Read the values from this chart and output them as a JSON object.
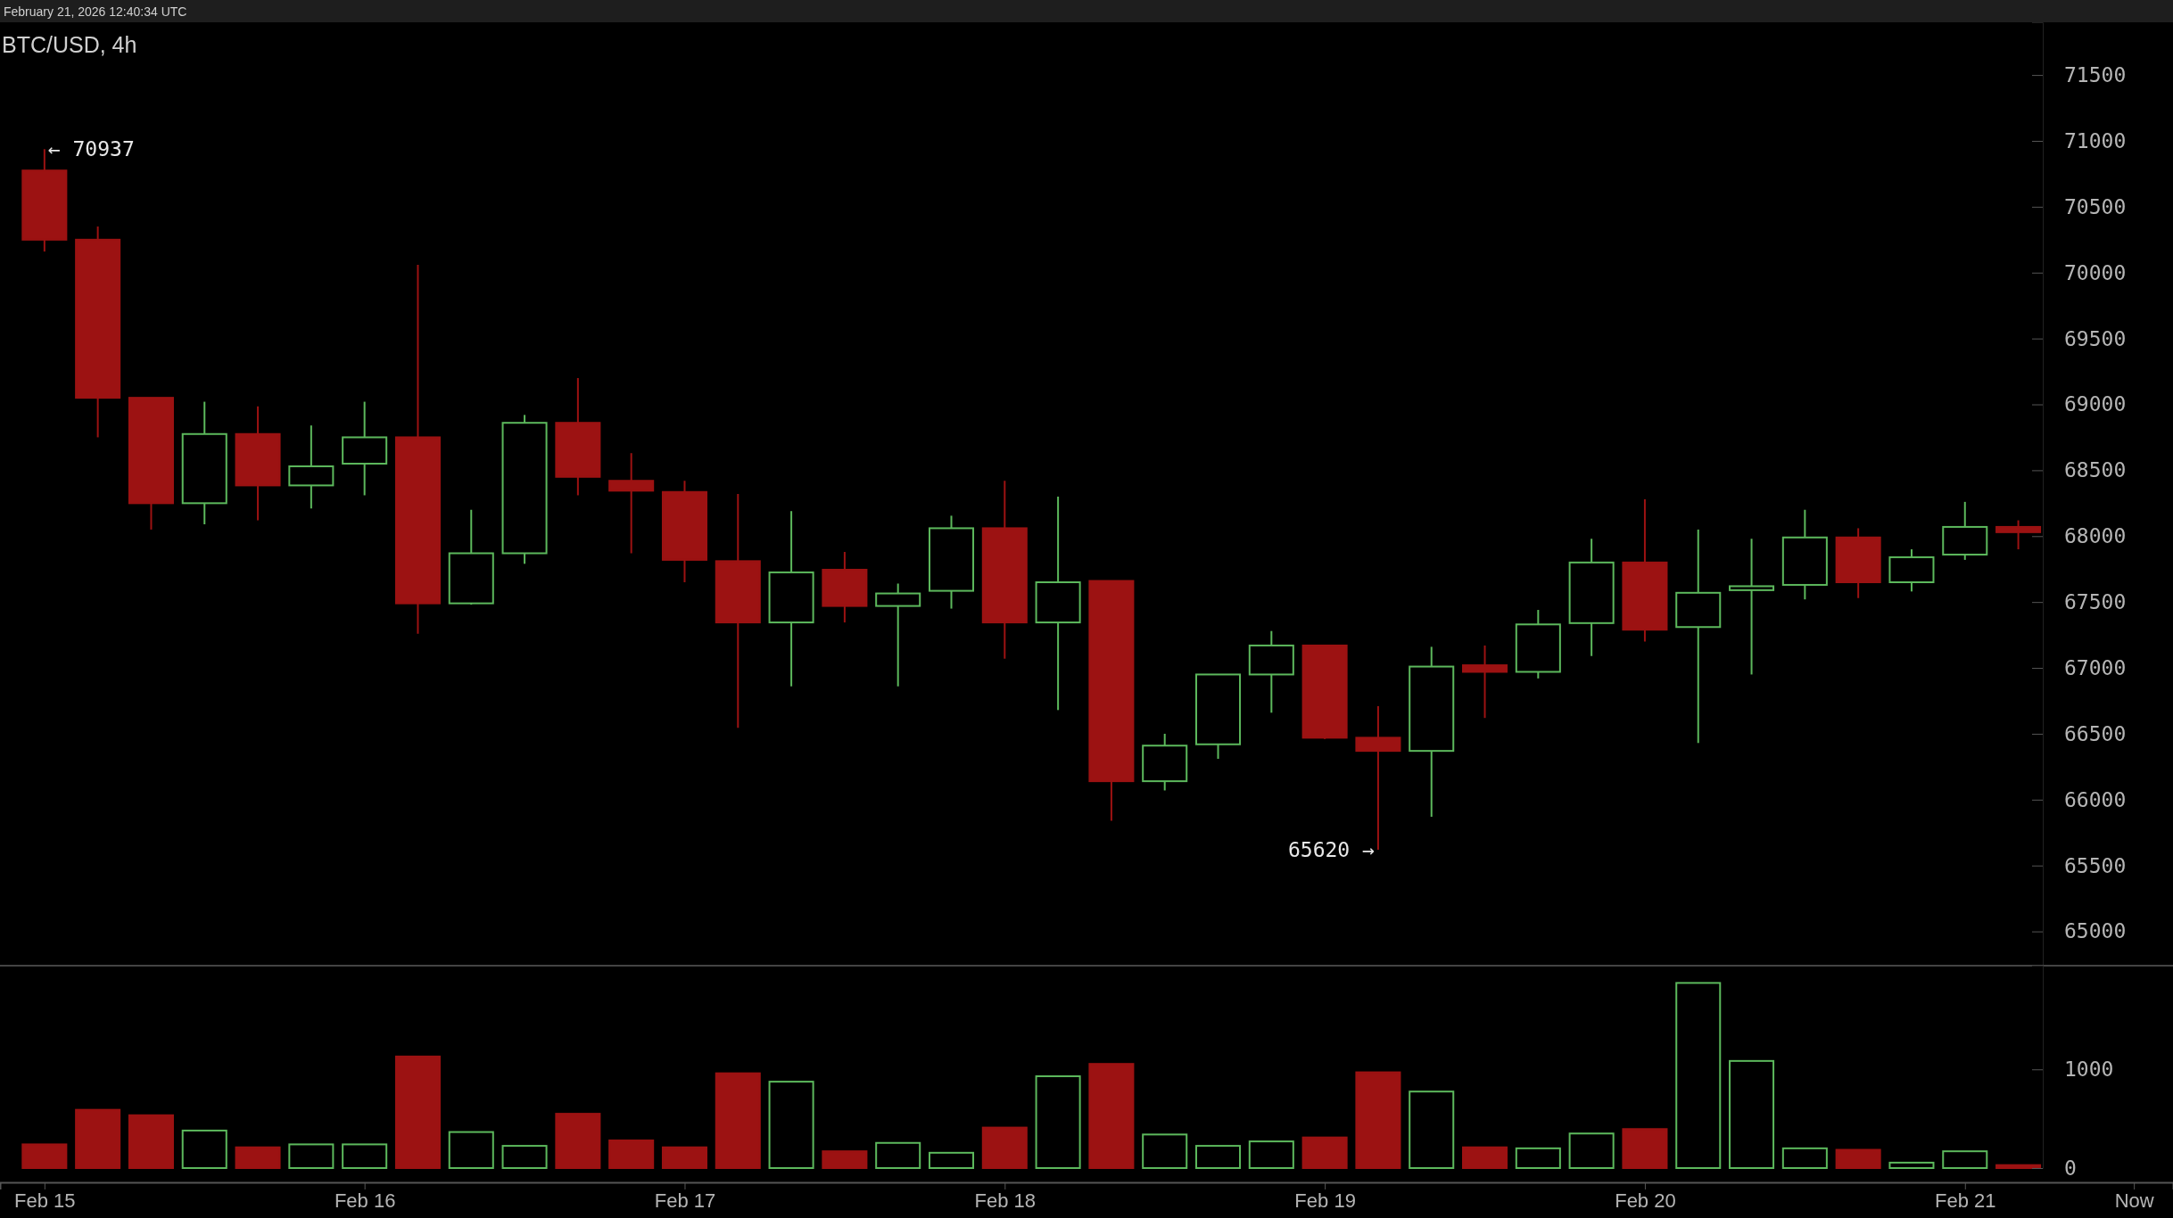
{
  "chart_data": [
    {
      "type": "candlestick",
      "title": "BTC/USD, 4h",
      "annotations": [
        "February 21, 2026 12:40:34 UTC",
        {
          "text": "← 70937",
          "x": "2026-02-15T00:00",
          "y": 70937
        },
        {
          "text": "65620 →",
          "x": "2026-02-19T04:00",
          "y": 65620
        }
      ],
      "x": [
        "2026-02-15T00:00",
        "2026-02-15T04:00",
        "2026-02-15T08:00",
        "2026-02-15T12:00",
        "2026-02-15T16:00",
        "2026-02-15T20:00",
        "2026-02-16T00:00",
        "2026-02-16T04:00",
        "2026-02-16T08:00",
        "2026-02-16T12:00",
        "2026-02-16T16:00",
        "2026-02-16T20:00",
        "2026-02-17T00:00",
        "2026-02-17T04:00",
        "2026-02-17T08:00",
        "2026-02-17T12:00",
        "2026-02-17T16:00",
        "2026-02-17T20:00",
        "2026-02-18T00:00",
        "2026-02-18T04:00",
        "2026-02-18T08:00",
        "2026-02-18T12:00",
        "2026-02-18T16:00",
        "2026-02-18T20:00",
        "2026-02-19T00:00",
        "2026-02-19T04:00",
        "2026-02-19T08:00",
        "2026-02-19T12:00",
        "2026-02-19T16:00",
        "2026-02-19T20:00",
        "2026-02-20T00:00",
        "2026-02-20T04:00",
        "2026-02-20T08:00",
        "2026-02-20T12:00",
        "2026-02-20T16:00",
        "2026-02-20T20:00",
        "2026-02-21T00:00",
        "2026-02-21T04:00"
      ],
      "ohlc": [
        [
          70775,
          70937,
          70160,
          70250
        ],
        [
          70250,
          70350,
          68750,
          69050
        ],
        [
          69050,
          69050,
          68050,
          68250
        ],
        [
          68250,
          69020,
          68090,
          68775
        ],
        [
          68775,
          68985,
          68120,
          68385
        ],
        [
          68385,
          68840,
          68210,
          68530
        ],
        [
          68550,
          69020,
          68310,
          68750
        ],
        [
          68750,
          70060,
          67260,
          67490
        ],
        [
          67490,
          68200,
          67480,
          67870
        ],
        [
          67870,
          68920,
          67790,
          68860
        ],
        [
          68860,
          69200,
          68310,
          68450
        ],
        [
          68420,
          68630,
          67870,
          68345
        ],
        [
          68335,
          68420,
          67650,
          67820
        ],
        [
          67810,
          68320,
          66545,
          67345
        ],
        [
          67345,
          68190,
          66860,
          67725
        ],
        [
          67745,
          67880,
          67345,
          67470
        ],
        [
          67470,
          67640,
          66860,
          67565
        ],
        [
          67585,
          68155,
          67450,
          68060
        ],
        [
          68060,
          68420,
          67070,
          67345
        ],
        [
          67345,
          68300,
          66680,
          67650
        ],
        [
          67660,
          67660,
          65840,
          66140
        ],
        [
          66140,
          66500,
          66070,
          66410
        ],
        [
          66420,
          66950,
          66310,
          66950
        ],
        [
          66950,
          67280,
          66660,
          67170
        ],
        [
          67170,
          67170,
          66460,
          66470
        ],
        [
          66470,
          66710,
          65620,
          66370
        ],
        [
          66370,
          67160,
          65870,
          67010
        ],
        [
          67020,
          67170,
          66620,
          66970
        ],
        [
          66970,
          67440,
          66920,
          67330
        ],
        [
          67340,
          67980,
          67090,
          67800
        ],
        [
          67800,
          68280,
          67200,
          67290
        ],
        [
          67310,
          68050,
          66430,
          67570
        ],
        [
          67590,
          67980,
          66950,
          67620
        ],
        [
          67630,
          68200,
          67520,
          67990
        ],
        [
          67990,
          68060,
          67530,
          67650
        ],
        [
          67650,
          67900,
          67580,
          67840
        ],
        [
          67860,
          68260,
          67820,
          68070
        ],
        [
          68070,
          68120,
          67900,
          68030
        ]
      ],
      "colors": [
        "#9c1212",
        "#9c1212",
        "#9c1212",
        "#5cb85c",
        "#9c1212",
        "#5cb85c",
        "#5cb85c",
        "#9c1212",
        "#5cb85c",
        "#5cb85c",
        "#9c1212",
        "#9c1212",
        "#9c1212",
        "#9c1212",
        "#5cb85c",
        "#9c1212",
        "#5cb85c",
        "#5cb85c",
        "#9c1212",
        "#5cb85c",
        "#9c1212",
        "#5cb85c",
        "#5cb85c",
        "#5cb85c",
        "#9c1212",
        "#9c1212",
        "#5cb85c",
        "#9c1212",
        "#5cb85c",
        "#5cb85c",
        "#9c1212",
        "#5cb85c",
        "#5cb85c",
        "#5cb85c",
        "#9c1212",
        "#5cb85c",
        "#5cb85c",
        "#9c1212"
      ],
      "xlim": [
        "2026-02-14T20:40",
        "2026-02-21T15:36"
      ],
      "ylim": [
        64740,
        71900
      ],
      "yticks": [
        65000,
        65500,
        66000,
        66500,
        67000,
        67500,
        68000,
        68500,
        69000,
        69500,
        70000,
        70500,
        71000,
        71500
      ],
      "tick_labels": "y"
    },
    {
      "type": "bar",
      "x": [
        "2026-02-15T00:00",
        "2026-02-15T04:00",
        "2026-02-15T08:00",
        "2026-02-15T12:00",
        "2026-02-15T16:00",
        "2026-02-15T20:00",
        "2026-02-16T00:00",
        "2026-02-16T04:00",
        "2026-02-16T08:00",
        "2026-02-16T12:00",
        "2026-02-16T16:00",
        "2026-02-16T20:00",
        "2026-02-17T00:00",
        "2026-02-17T04:00",
        "2026-02-17T08:00",
        "2026-02-17T12:00",
        "2026-02-17T16:00",
        "2026-02-17T20:00",
        "2026-02-18T00:00",
        "2026-02-18T04:00",
        "2026-02-18T08:00",
        "2026-02-18T12:00",
        "2026-02-18T16:00",
        "2026-02-18T20:00",
        "2026-02-19T00:00",
        "2026-02-19T04:00",
        "2026-02-19T08:00",
        "2026-02-19T12:00",
        "2026-02-19T16:00",
        "2026-02-19T20:00",
        "2026-02-20T00:00",
        "2026-02-20T04:00",
        "2026-02-20T08:00",
        "2026-02-20T12:00",
        "2026-02-20T16:00",
        "2026-02-20T20:00",
        "2026-02-21T00:00",
        "2026-02-21T04:00"
      ],
      "values": [
        240,
        590,
        535,
        380,
        210,
        240,
        240,
        1130,
        365,
        225,
        550,
        280,
        210,
        960,
        875,
        170,
        255,
        155,
        410,
        930,
        1055,
        340,
        225,
        270,
        310,
        970,
        775,
        210,
        200,
        350,
        395,
        1875,
        1085,
        200,
        185,
        55,
        170,
        30
      ],
      "colors": [
        "#9c1212",
        "#9c1212",
        "#9c1212",
        "#5cb85c",
        "#9c1212",
        "#5cb85c",
        "#5cb85c",
        "#9c1212",
        "#5cb85c",
        "#5cb85c",
        "#9c1212",
        "#9c1212",
        "#9c1212",
        "#9c1212",
        "#5cb85c",
        "#9c1212",
        "#5cb85c",
        "#5cb85c",
        "#9c1212",
        "#5cb85c",
        "#9c1212",
        "#5cb85c",
        "#5cb85c",
        "#5cb85c",
        "#9c1212",
        "#9c1212",
        "#5cb85c",
        "#9c1212",
        "#5cb85c",
        "#5cb85c",
        "#9c1212",
        "#5cb85c",
        "#5cb85c",
        "#5cb85c",
        "#9c1212",
        "#5cb85c",
        "#5cb85c",
        "#9c1212"
      ],
      "xlim": [
        "2026-02-14T20:40",
        "2026-02-21T15:36"
      ],
      "xticks": [
        {
          "value": "2026-02-15T00:00",
          "label": "Feb 15"
        },
        {
          "value": "2026-02-16T00:00",
          "label": "Feb 16"
        },
        {
          "value": "2026-02-17T00:00",
          "label": "Feb 17"
        },
        {
          "value": "2026-02-18T00:00",
          "label": "Feb 18"
        },
        {
          "value": "2026-02-19T00:00",
          "label": "Feb 19"
        },
        {
          "value": "2026-02-20T00:00",
          "label": "Feb 20"
        },
        {
          "value": "2026-02-21T00:00",
          "label": "Feb 21"
        },
        {
          "value": "2026-02-21T12:40",
          "label": "Now"
        }
      ],
      "ylim": [
        0,
        2050
      ],
      "yticks": [
        0,
        1000
      ]
    }
  ]
}
